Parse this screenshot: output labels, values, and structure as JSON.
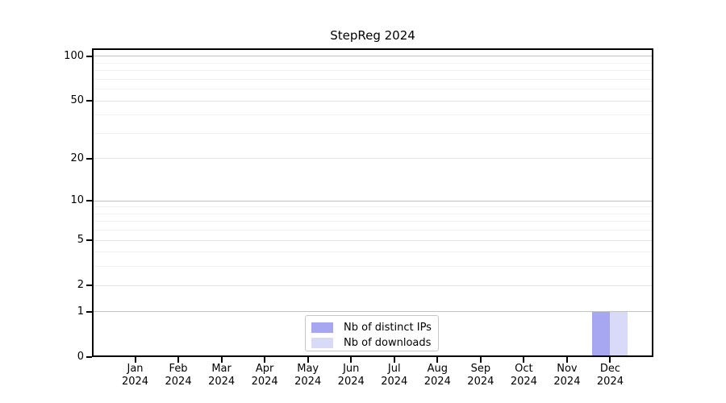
{
  "title": "StepReg 2024",
  "legend": {
    "items": [
      {
        "label": "Nb of distinct IPs",
        "color": "#a6a6f1"
      },
      {
        "label": "Nb of downloads",
        "color": "#d9d9f8"
      }
    ]
  },
  "style": {
    "frame_color": "#000000",
    "text_color": "#000000",
    "grid_decade_color": "#c2c2c2",
    "grid_major_color": "#e4e4e4",
    "grid_minor_color": "#f1f1f1"
  },
  "chart_data": {
    "type": "bar",
    "title": "StepReg 2024",
    "categories": [
      "Jan 2024",
      "Feb 2024",
      "Mar 2024",
      "Apr 2024",
      "May 2024",
      "Jun 2024",
      "Jul 2024",
      "Aug 2024",
      "Sep 2024",
      "Oct 2024",
      "Nov 2024",
      "Dec 2024"
    ],
    "series": [
      {
        "name": "Nb of distinct IPs",
        "color": "#a6a6f1",
        "values": [
          0,
          0,
          0,
          0,
          0,
          0,
          0,
          0,
          0,
          0,
          0,
          1
        ]
      },
      {
        "name": "Nb of downloads",
        "color": "#d9d9f8",
        "values": [
          0,
          0,
          0,
          0,
          0,
          0,
          0,
          0,
          0,
          0,
          0,
          1
        ]
      }
    ],
    "xlabel": "",
    "ylabel": "",
    "yscale": "log1p",
    "ylim": [
      0,
      113
    ],
    "y_major_ticks": [
      0,
      1,
      2,
      5,
      10,
      20,
      50,
      100
    ],
    "y_decade_gridlines": [
      1,
      10,
      100
    ],
    "y_minor_gridlines": [
      3,
      4,
      6,
      7,
      8,
      9,
      30,
      40,
      60,
      70,
      80,
      90
    ],
    "grid": "horizontal",
    "legend_position": "inside-bottom-center"
  }
}
